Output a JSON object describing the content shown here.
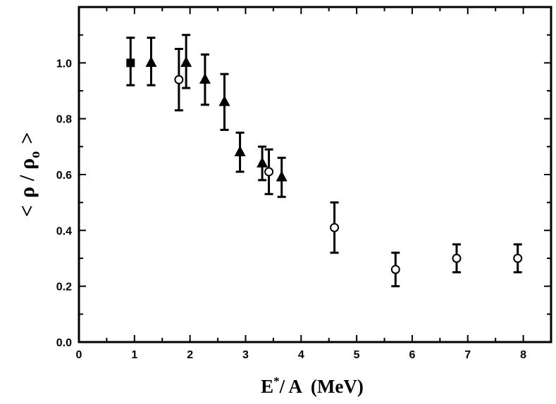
{
  "chart_data": {
    "type": "scatter",
    "xlabel": {
      "main": "E",
      "sup": "*",
      "rest": "/ A  (MeV)"
    },
    "ylabel": {
      "open": "<",
      "rho": "ρ",
      "slash": "/",
      "rho0": "ρ",
      "sub": "o",
      "close": ">"
    },
    "xlim": [
      0,
      8.5
    ],
    "ylim": [
      0.0,
      1.2
    ],
    "x_ticks": [
      0,
      1,
      2,
      3,
      4,
      5,
      6,
      7,
      8
    ],
    "x_tick_labels": [
      "0",
      "1",
      "2",
      "3",
      "4",
      "5",
      "6",
      "7",
      "8"
    ],
    "y_ticks": [
      0.0,
      0.2,
      0.4,
      0.6,
      0.8,
      1.0
    ],
    "y_tick_labels": [
      "0.0",
      "0.2",
      "0.4",
      "0.6",
      "0.8",
      "1.0"
    ],
    "grid": false,
    "series": [
      {
        "marker": "filled-square",
        "points": [
          {
            "x": 0.93,
            "y": 1.0,
            "err_low": 0.92,
            "err_high": 1.09
          }
        ]
      },
      {
        "marker": "filled-triangle",
        "points": [
          {
            "x": 1.3,
            "y": 1.0,
            "err_low": 0.92,
            "err_high": 1.09
          },
          {
            "x": 1.93,
            "y": 1.0,
            "err_low": 0.91,
            "err_high": 1.1
          },
          {
            "x": 2.27,
            "y": 0.94,
            "err_low": 0.85,
            "err_high": 1.03
          },
          {
            "x": 2.62,
            "y": 0.86,
            "err_low": 0.76,
            "err_high": 0.96
          },
          {
            "x": 2.9,
            "y": 0.68,
            "err_low": 0.61,
            "err_high": 0.75
          },
          {
            "x": 3.3,
            "y": 0.64,
            "err_low": 0.58,
            "err_high": 0.7
          },
          {
            "x": 3.65,
            "y": 0.59,
            "err_low": 0.52,
            "err_high": 0.66
          }
        ]
      },
      {
        "marker": "open-circle",
        "points": [
          {
            "x": 1.8,
            "y": 0.94,
            "err_low": 0.83,
            "err_high": 1.05
          },
          {
            "x": 3.42,
            "y": 0.61,
            "err_low": 0.53,
            "err_high": 0.69
          },
          {
            "x": 4.6,
            "y": 0.41,
            "err_low": 0.32,
            "err_high": 0.5
          },
          {
            "x": 5.7,
            "y": 0.26,
            "err_low": 0.2,
            "err_high": 0.32
          },
          {
            "x": 6.8,
            "y": 0.3,
            "err_low": 0.25,
            "err_high": 0.35
          },
          {
            "x": 7.9,
            "y": 0.3,
            "err_low": 0.25,
            "err_high": 0.35
          }
        ]
      }
    ]
  }
}
